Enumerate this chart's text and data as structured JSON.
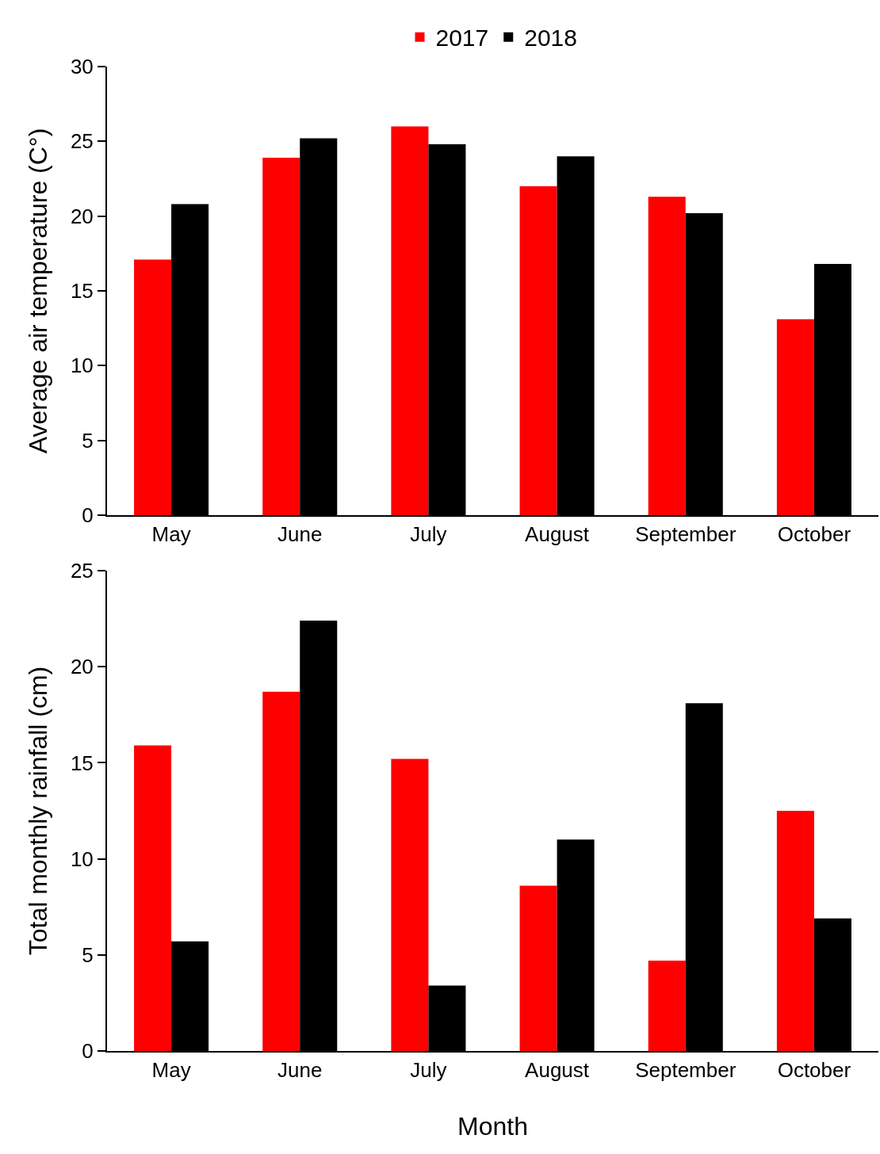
{
  "chart_data": [
    {
      "type": "bar",
      "ylabel": "Average air temperature (C°)",
      "categories": [
        "May",
        "June",
        "July",
        "August",
        "September",
        "October"
      ],
      "series": [
        {
          "name": "2017",
          "color": "#ff0000",
          "values": [
            17.1,
            23.9,
            26.0,
            22.0,
            21.3,
            13.1
          ]
        },
        {
          "name": "2018",
          "color": "#000000",
          "values": [
            20.8,
            25.2,
            24.8,
            24.0,
            20.2,
            16.8
          ]
        }
      ],
      "ylim": [
        0,
        30
      ],
      "yticks": [
        0,
        5,
        10,
        15,
        20,
        25,
        30
      ],
      "grid": false,
      "legend": "top"
    },
    {
      "type": "bar",
      "xlabel": "Month",
      "ylabel": "Total monthly rainfall (cm)",
      "categories": [
        "May",
        "June",
        "July",
        "August",
        "September",
        "October"
      ],
      "series": [
        {
          "color": "#ff0000",
          "values": [
            15.9,
            18.7,
            15.2,
            8.6,
            4.7,
            12.5
          ]
        },
        {
          "color": "#000000",
          "values": [
            5.7,
            22.4,
            3.4,
            11.0,
            18.1,
            6.9
          ]
        }
      ],
      "ylim": [
        0,
        25
      ],
      "yticks": [
        0,
        5,
        10,
        15,
        20,
        25
      ],
      "grid": false
    }
  ]
}
